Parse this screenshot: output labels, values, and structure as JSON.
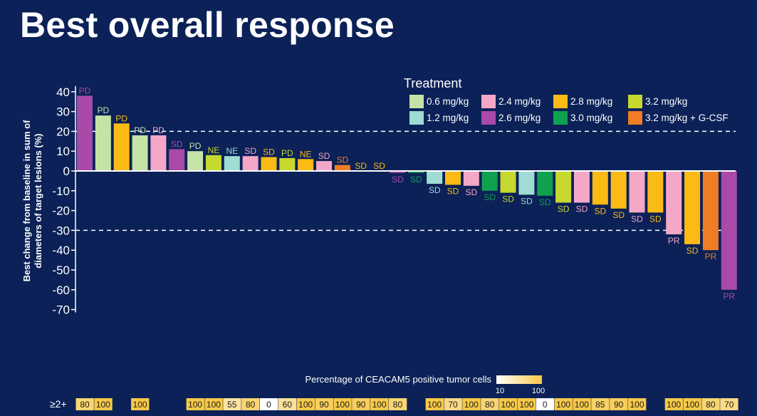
{
  "slide": {
    "title": "Best overall response"
  },
  "colors": {
    "background": "#0b2157",
    "text": "#ffffff",
    "heat_low": "#ffffff",
    "heat_high": "#f7c948"
  },
  "chart_data": {
    "type": "bar",
    "ylabel_lines": [
      "Best change from baseline in sum of",
      "diameters of target lesions (%)"
    ],
    "ylim": [
      -70,
      40
    ],
    "yticks": [
      40,
      30,
      20,
      10,
      0,
      -10,
      -20,
      -30,
      -40,
      -50,
      -60,
      -70
    ],
    "reference_lines": [
      20,
      -30
    ],
    "legend": {
      "title": "Treatment",
      "entries": [
        {
          "label": "0.6 mg/kg",
          "color": "#c5e3a6"
        },
        {
          "label": "1.2 mg/kg",
          "color": "#9fdcd4"
        },
        {
          "label": "2.4 mg/kg",
          "color": "#f4a7c6"
        },
        {
          "label": "2.6 mg/kg",
          "color": "#a94aa8"
        },
        {
          "label": "2.8 mg/kg",
          "color": "#fbbb14"
        },
        {
          "label": "3.0 mg/kg",
          "color": "#0fa14f"
        },
        {
          "label": "3.2 mg/kg",
          "color": "#c6d92f"
        },
        {
          "label": "3.2 mg/kg + G-CSF",
          "color": "#f07d23"
        }
      ]
    },
    "bars": [
      {
        "value": 38,
        "treatment": "2.6 mg/kg",
        "response": "PD",
        "ceacam5": "80"
      },
      {
        "value": 28,
        "treatment": "0.6 mg/kg",
        "response": "PD",
        "ceacam5": "100"
      },
      {
        "value": 24,
        "treatment": "2.8 mg/kg",
        "response": "PD",
        "ceacam5": ""
      },
      {
        "value": 18,
        "treatment": "0.6 mg/kg",
        "response": "PD",
        "ceacam5": "100"
      },
      {
        "value": 18,
        "treatment": "2.4 mg/kg",
        "response": "PD",
        "ceacam5": ""
      },
      {
        "value": 11,
        "treatment": "2.6 mg/kg",
        "response": "SD",
        "ceacam5": ""
      },
      {
        "value": 10,
        "treatment": "0.6 mg/kg",
        "response": "PD",
        "ceacam5": "100"
      },
      {
        "value": 8,
        "treatment": "3.2 mg/kg",
        "response": "NE",
        "ceacam5": "100"
      },
      {
        "value": 7.5,
        "treatment": "1.2 mg/kg",
        "response": "NE",
        "ceacam5": "55"
      },
      {
        "value": 7.5,
        "treatment": "2.4 mg/kg",
        "response": "SD",
        "ceacam5": "80"
      },
      {
        "value": 7,
        "treatment": "2.8 mg/kg",
        "response": "SD",
        "ceacam5": "0"
      },
      {
        "value": 6.5,
        "treatment": "3.2 mg/kg",
        "response": "PD",
        "ceacam5": "60"
      },
      {
        "value": 6,
        "treatment": "2.8 mg/kg",
        "response": "NE",
        "ceacam5": "100"
      },
      {
        "value": 5,
        "treatment": "2.4 mg/kg",
        "response": "SD",
        "ceacam5": "90"
      },
      {
        "value": 3,
        "treatment": "3.2 mg/kg + G-CSF",
        "response": "SD",
        "ceacam5": "100"
      },
      {
        "value": 0,
        "treatment": "2.8 mg/kg",
        "response": "SD",
        "ceacam5": "90"
      },
      {
        "value": 0,
        "treatment": "2.8 mg/kg",
        "response": "SD",
        "ceacam5": "100"
      },
      {
        "value": -1,
        "treatment": "2.6 mg/kg",
        "response": "SD",
        "ceacam5": "80"
      },
      {
        "value": -1,
        "treatment": "3.0 mg/kg",
        "response": "SD",
        "ceacam5": ""
      },
      {
        "value": -6.5,
        "treatment": "1.2 mg/kg",
        "response": "SD",
        "ceacam5": "100"
      },
      {
        "value": -7,
        "treatment": "2.8 mg/kg",
        "response": "SD",
        "ceacam5": "70"
      },
      {
        "value": -7.5,
        "treatment": "2.4 mg/kg",
        "response": "SD",
        "ceacam5": "100"
      },
      {
        "value": -10,
        "treatment": "3.0 mg/kg",
        "response": "SD",
        "ceacam5": "80"
      },
      {
        "value": -11,
        "treatment": "3.2 mg/kg",
        "response": "SD",
        "ceacam5": "100"
      },
      {
        "value": -12,
        "treatment": "1.2 mg/kg",
        "response": "SD",
        "ceacam5": "100"
      },
      {
        "value": -12.5,
        "treatment": "3.0 mg/kg",
        "response": "SD",
        "ceacam5": "0"
      },
      {
        "value": -16,
        "treatment": "3.2 mg/kg",
        "response": "SD",
        "ceacam5": "100"
      },
      {
        "value": -16,
        "treatment": "2.4 mg/kg",
        "response": "SD",
        "ceacam5": "100"
      },
      {
        "value": -17,
        "treatment": "2.8 mg/kg",
        "response": "SD",
        "ceacam5": "85"
      },
      {
        "value": -19,
        "treatment": "2.8 mg/kg",
        "response": "SD",
        "ceacam5": "90"
      },
      {
        "value": -21,
        "treatment": "2.4 mg/kg",
        "response": "SD",
        "ceacam5": "100"
      },
      {
        "value": -21,
        "treatment": "2.8 mg/kg",
        "response": "SD",
        "ceacam5": ""
      },
      {
        "value": -32,
        "treatment": "2.4 mg/kg",
        "response": "PR",
        "ceacam5": "100"
      },
      {
        "value": -37,
        "treatment": "2.8 mg/kg",
        "response": "SD",
        "ceacam5": "100"
      },
      {
        "value": -40,
        "treatment": "3.2 mg/kg + G-CSF",
        "response": "PR",
        "ceacam5": "80"
      },
      {
        "value": -60,
        "treatment": "2.6 mg/kg",
        "response": "PR",
        "ceacam5": "70"
      }
    ],
    "ceacam5_row": {
      "title": "Percentage of CEACAM5 positive tumor cells",
      "row_label": "≥2+",
      "scale_min_label": "10",
      "scale_max_label": "100",
      "scale_min": 10,
      "scale_max": 100
    }
  }
}
